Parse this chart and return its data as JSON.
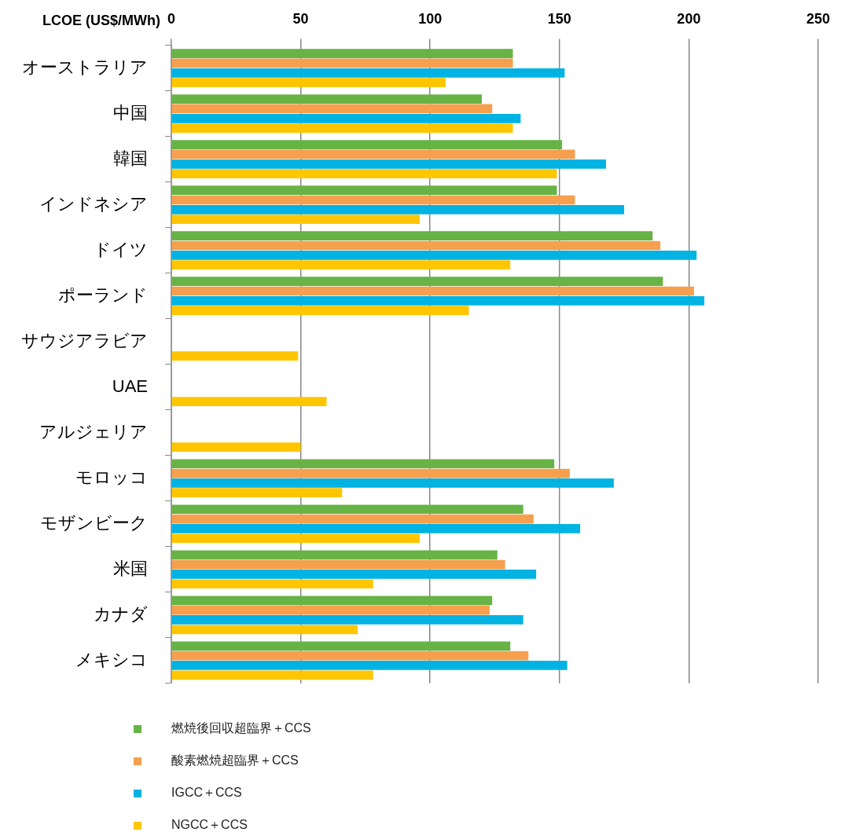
{
  "chart_data": {
    "type": "bar",
    "orientation": "horizontal",
    "xlabel": "LCOE (US$/MWh)",
    "categories": [
      "オーストラリア",
      "中国",
      "韓国",
      "インドネシア",
      "ドイツ",
      "ポーランド",
      "サウジアラビア",
      "UAE",
      "アルジェリア",
      "モロッコ",
      "モザンビーク",
      "米国",
      "カナダ",
      "メキシコ"
    ],
    "series": [
      {
        "name": "燃焼後回収超臨界＋CCS",
        "color": "#67b346",
        "values": [
          132,
          120,
          151,
          149,
          186,
          190,
          null,
          null,
          null,
          148,
          136,
          126,
          124,
          131
        ]
      },
      {
        "name": "酸素燃焼超臨界＋CCS",
        "color": "#f69f4e",
        "values": [
          132,
          124,
          156,
          156,
          189,
          202,
          null,
          null,
          null,
          154,
          140,
          129,
          123,
          138
        ]
      },
      {
        "name": "IGCC＋CCS",
        "color": "#00b3e3",
        "values": [
          152,
          135,
          168,
          175,
          203,
          206,
          null,
          null,
          null,
          171,
          158,
          141,
          136,
          153
        ]
      },
      {
        "name": "NGCC＋CCS",
        "color": "#ffc600",
        "values": [
          106,
          132,
          149,
          96,
          131,
          115,
          49,
          60,
          50,
          66,
          96,
          78,
          72,
          78
        ]
      }
    ],
    "xlim": [
      0,
      250
    ],
    "xticks": [
      0,
      50,
      100,
      150,
      200,
      250
    ],
    "grid": "x",
    "legend": "bottom left"
  }
}
